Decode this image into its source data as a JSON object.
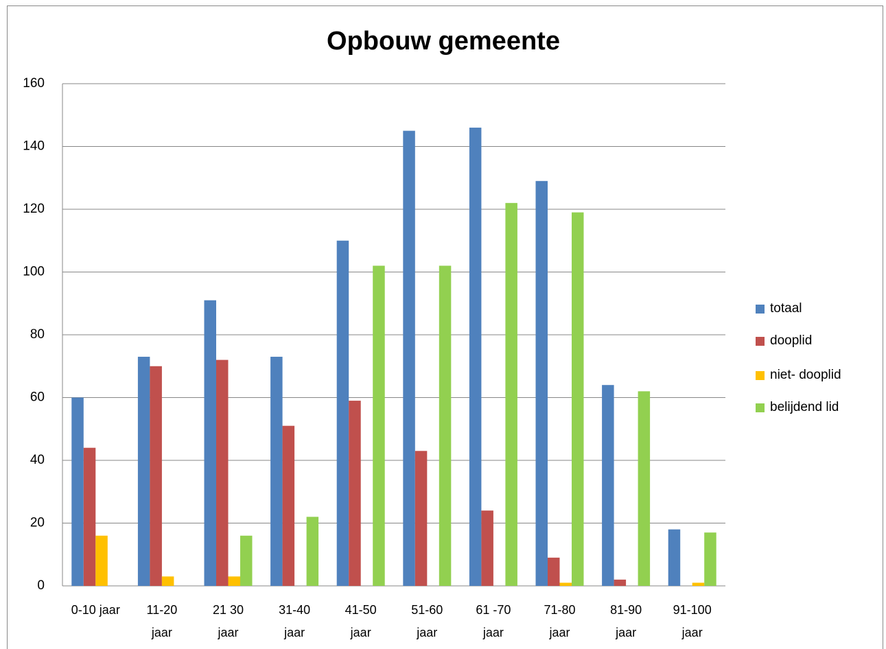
{
  "chart_data": {
    "type": "bar",
    "title": "Opbouw gemeente",
    "categories": [
      "0-10 jaar",
      "11-20 jaar",
      "21 30 jaar",
      "31-40 jaar",
      "41-50 jaar",
      "51-60 jaar",
      "61 -70 jaar",
      "71-80 jaar",
      "81-90 jaar",
      "91-100 jaar"
    ],
    "series": [
      {
        "name": "totaal",
        "color": "#4f81bd",
        "values": [
          60,
          73,
          91,
          73,
          110,
          145,
          146,
          129,
          64,
          18
        ]
      },
      {
        "name": "dooplid",
        "color": "#c0504d",
        "values": [
          44,
          70,
          72,
          51,
          59,
          43,
          24,
          9,
          2,
          0
        ]
      },
      {
        "name": "niet- dooplid",
        "color": "#ffc000",
        "values": [
          16,
          3,
          3,
          0,
          0,
          0,
          0,
          1,
          0,
          1
        ]
      },
      {
        "name": "belijdend lid",
        "color": "#92d050",
        "values": [
          0,
          0,
          16,
          22,
          102,
          102,
          122,
          119,
          62,
          17
        ]
      }
    ],
    "ylim": [
      0,
      160
    ],
    "yticks": [
      0,
      20,
      40,
      60,
      80,
      100,
      120,
      140,
      160
    ],
    "grid": true,
    "legend": "right"
  }
}
